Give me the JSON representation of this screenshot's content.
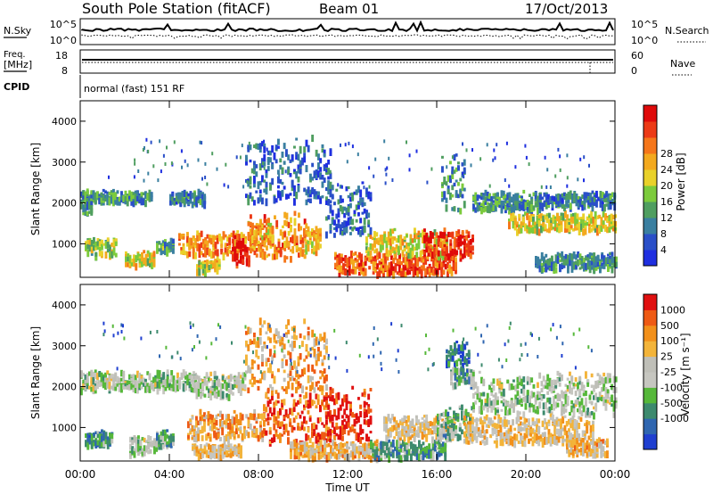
{
  "header": {
    "station": "South Pole Station (fitACF)",
    "beam": "Beam 01",
    "date": "17/Oct/2013"
  },
  "status_panels": {
    "nsky_label": "N.Sky",
    "nsky_ticks": [
      "10^5",
      "10^0"
    ],
    "nsearch_label": "N.Search",
    "nsearch_ticks": [
      "10^5",
      "10^0"
    ],
    "freq_label": "Freq.",
    "freq_unit": "[MHz]",
    "freq_ticks": [
      "18",
      "8"
    ],
    "nave_label": "Nave",
    "nave_ticks": [
      "60",
      "0"
    ],
    "cpid_label": "CPID",
    "cpid_value": "normal (fast) 151 RF"
  },
  "chart_data": [
    {
      "type": "heatmap",
      "name": "power",
      "ylabel": "Slant Range [km]",
      "ylim": [
        180,
        4500
      ],
      "yticks": [
        "1000",
        "2000",
        "3000",
        "4000"
      ],
      "xlabel": "Time UT",
      "xticks": [
        "00:00",
        "04:00",
        "08:00",
        "12:00",
        "16:00",
        "20:00",
        "00:00"
      ],
      "colorbar": {
        "label": "Power [dB]",
        "ticks": [
          "4",
          "8",
          "12",
          "16",
          "20",
          "24",
          "28"
        ],
        "colors": [
          "#1f2fe0",
          "#2a4fc8",
          "#3a7fa0",
          "#4f9e60",
          "#7ccb3c",
          "#e9d12a",
          "#f3a91e",
          "#f5761a",
          "#ec3a16",
          "#df0a0a"
        ]
      },
      "regions": [
        {
          "t0": 0.0,
          "t1": 3.2,
          "r0": 2000,
          "r1": 2250,
          "level": 0.3
        },
        {
          "t0": 4.0,
          "t1": 5.6,
          "r0": 1950,
          "r1": 2250,
          "level": 0.25
        },
        {
          "t0": 7.4,
          "t1": 11.2,
          "r0": 2000,
          "r1": 3400,
          "level": 0.2
        },
        {
          "t0": 0.0,
          "t1": 0.5,
          "r0": 2000,
          "r1": 1700,
          "level": 0.3
        },
        {
          "t0": 0.2,
          "t1": 1.6,
          "r0": 700,
          "r1": 1100,
          "level": 0.45
        },
        {
          "t0": 2.0,
          "t1": 3.3,
          "r0": 450,
          "r1": 750,
          "level": 0.55
        },
        {
          "t0": 3.4,
          "t1": 4.2,
          "r0": 800,
          "r1": 1050,
          "level": 0.35
        },
        {
          "t0": 4.4,
          "t1": 7.4,
          "r0": 700,
          "r1": 1200,
          "level": 0.7
        },
        {
          "t0": 6.8,
          "t1": 7.6,
          "r0": 450,
          "r1": 1100,
          "level": 0.95
        },
        {
          "t0": 7.6,
          "t1": 10.2,
          "r0": 600,
          "r1": 1600,
          "level": 0.75
        },
        {
          "t0": 10.0,
          "t1": 10.8,
          "r0": 750,
          "r1": 1350,
          "level": 0.65
        },
        {
          "t0": 7.5,
          "t1": 8.6,
          "r0": 1000,
          "r1": 1500,
          "level": 0.65
        },
        {
          "t0": 5.2,
          "t1": 6.2,
          "r0": 300,
          "r1": 550,
          "level": 0.55
        },
        {
          "t0": 11.4,
          "t1": 16.8,
          "r0": 250,
          "r1": 700,
          "level": 0.8
        },
        {
          "t0": 12.8,
          "t1": 16.4,
          "r0": 700,
          "r1": 1250,
          "level": 0.55
        },
        {
          "t0": 15.4,
          "t1": 17.6,
          "r0": 650,
          "r1": 1250,
          "level": 0.9
        },
        {
          "t0": 16.2,
          "t1": 17.2,
          "r0": 1800,
          "r1": 3000,
          "level": 0.3
        },
        {
          "t0": 17.6,
          "t1": 20.6,
          "r0": 1800,
          "r1": 2200,
          "level": 0.3
        },
        {
          "t0": 19.2,
          "t1": 24.0,
          "r0": 1300,
          "r1": 1700,
          "level": 0.55
        },
        {
          "t0": 20.6,
          "t1": 24.0,
          "r0": 1900,
          "r1": 2200,
          "level": 0.25
        },
        {
          "t0": 20.4,
          "t1": 24.0,
          "r0": 350,
          "r1": 700,
          "level": 0.3
        },
        {
          "t0": 11.0,
          "t1": 13.0,
          "r0": 1200,
          "r1": 2400,
          "level": 0.2
        }
      ]
    },
    {
      "type": "heatmap",
      "name": "velocity",
      "ylabel": "Slant Range [km]",
      "ylim": [
        180,
        4500
      ],
      "yticks": [
        "1000",
        "2000",
        "3000",
        "4000"
      ],
      "xlabel": "Time UT",
      "xticks": [
        "00:00",
        "04:00",
        "08:00",
        "12:00",
        "16:00",
        "20:00",
        "00:00"
      ],
      "colorbar": {
        "label": "Velocity [m s⁻¹]",
        "ticks": [
          "1000",
          "500",
          "100",
          "25",
          "-25",
          "-100",
          "-500",
          "-1000"
        ],
        "colors": [
          "#1f3fd0",
          "#2f66b0",
          "#3d8a6e",
          "#56b83a",
          "#c6c6c0",
          "#bfbfb8",
          "#f3b43a",
          "#f2901a",
          "#ee5a14",
          "#e01010"
        ]
      },
      "regions": [
        {
          "t0": 0.0,
          "t1": 5.2,
          "r0": 1900,
          "r1": 2300,
          "level": 0.45
        },
        {
          "t0": 5.0,
          "t1": 7.4,
          "r0": 1750,
          "r1": 2250,
          "level": 0.45
        },
        {
          "t0": 7.4,
          "t1": 11.0,
          "r0": 1900,
          "r1": 3400,
          "level": 0.7
        },
        {
          "t0": 0.2,
          "t1": 1.4,
          "r0": 550,
          "r1": 850,
          "level": 0.25
        },
        {
          "t0": 2.2,
          "t1": 3.4,
          "r0": 300,
          "r1": 750,
          "level": 0.45
        },
        {
          "t0": 3.4,
          "t1": 4.2,
          "r0": 500,
          "r1": 850,
          "level": 0.3
        },
        {
          "t0": 4.8,
          "t1": 8.2,
          "r0": 700,
          "r1": 1300,
          "level": 0.7
        },
        {
          "t0": 8.2,
          "t1": 11.2,
          "r0": 600,
          "r1": 1800,
          "level": 0.85
        },
        {
          "t0": 11.0,
          "t1": 13.0,
          "r0": 700,
          "r1": 1800,
          "level": 0.95
        },
        {
          "t0": 5.0,
          "t1": 7.2,
          "r0": 300,
          "r1": 550,
          "level": 0.6
        },
        {
          "t0": 9.4,
          "t1": 13.4,
          "r0": 250,
          "r1": 600,
          "level": 0.65
        },
        {
          "t0": 13.0,
          "t1": 16.4,
          "r0": 250,
          "r1": 600,
          "level": 0.3
        },
        {
          "t0": 13.6,
          "t1": 16.8,
          "r0": 700,
          "r1": 1200,
          "level": 0.6
        },
        {
          "t0": 16.0,
          "t1": 17.6,
          "r0": 700,
          "r1": 1400,
          "level": 0.35
        },
        {
          "t0": 16.4,
          "t1": 17.4,
          "r0": 2500,
          "r1": 3000,
          "level": 0.15
        },
        {
          "t0": 16.6,
          "t1": 17.6,
          "r0": 2000,
          "r1": 2400,
          "level": 0.35
        },
        {
          "t0": 17.6,
          "t1": 24.0,
          "r0": 1300,
          "r1": 2200,
          "level": 0.45
        },
        {
          "t0": 17.2,
          "t1": 23.0,
          "r0": 600,
          "r1": 1200,
          "level": 0.6
        },
        {
          "t0": 21.8,
          "t1": 23.6,
          "r0": 300,
          "r1": 700,
          "level": 0.65
        }
      ]
    }
  ]
}
